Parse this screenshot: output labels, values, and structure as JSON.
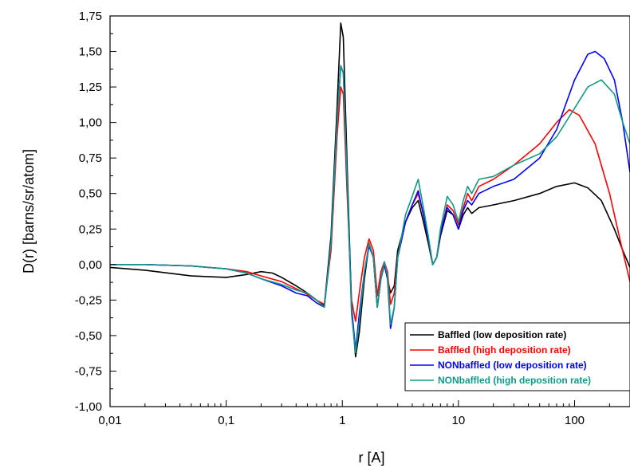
{
  "chart_data": {
    "type": "line",
    "xlabel": "r [A]",
    "ylabel": "D(r) [barns/sr/atom]",
    "xscale": "log",
    "xlim": [
      0.01,
      300
    ],
    "ylim": [
      -1.0,
      1.75
    ],
    "grid": false,
    "legend_position": "bottom-right",
    "x_ticks": [
      {
        "value": 0.01,
        "label": "0,01"
      },
      {
        "value": 0.1,
        "label": "0,1"
      },
      {
        "value": 1,
        "label": "1"
      },
      {
        "value": 10,
        "label": "10"
      },
      {
        "value": 100,
        "label": "100"
      }
    ],
    "y_ticks": [
      {
        "value": 1.75,
        "label": "1,75"
      },
      {
        "value": 1.5,
        "label": "1,50"
      },
      {
        "value": 1.25,
        "label": "1,25"
      },
      {
        "value": 1.0,
        "label": "1,00"
      },
      {
        "value": 0.75,
        "label": "0,75"
      },
      {
        "value": 0.5,
        "label": "0,50"
      },
      {
        "value": 0.25,
        "label": "0,25"
      },
      {
        "value": 0.0,
        "label": "0,00"
      },
      {
        "value": -0.25,
        "label": "-0,25"
      },
      {
        "value": -0.5,
        "label": "-0,50"
      },
      {
        "value": -0.75,
        "label": "-0,75"
      },
      {
        "value": -1.0,
        "label": "-1,00"
      }
    ],
    "series": [
      {
        "name": "Baffled (low deposition rate)",
        "color": "#000000",
        "points": [
          [
            0.01,
            -0.02
          ],
          [
            0.02,
            -0.04
          ],
          [
            0.05,
            -0.08
          ],
          [
            0.1,
            -0.09
          ],
          [
            0.15,
            -0.07
          ],
          [
            0.2,
            -0.05
          ],
          [
            0.25,
            -0.06
          ],
          [
            0.3,
            -0.09
          ],
          [
            0.4,
            -0.15
          ],
          [
            0.5,
            -0.2
          ],
          [
            0.6,
            -0.25
          ],
          [
            0.7,
            -0.29
          ],
          [
            0.8,
            0.2
          ],
          [
            0.9,
            1.1
          ],
          [
            0.97,
            1.7
          ],
          [
            1.02,
            1.6
          ],
          [
            1.1,
            0.7
          ],
          [
            1.2,
            -0.3
          ],
          [
            1.3,
            -0.65
          ],
          [
            1.4,
            -0.48
          ],
          [
            1.55,
            -0.1
          ],
          [
            1.7,
            0.15
          ],
          [
            1.85,
            0.05
          ],
          [
            2.0,
            -0.3
          ],
          [
            2.15,
            -0.1
          ],
          [
            2.3,
            0.0
          ],
          [
            2.45,
            -0.1
          ],
          [
            2.6,
            -0.2
          ],
          [
            2.8,
            -0.15
          ],
          [
            3.0,
            0.1
          ],
          [
            3.5,
            0.3
          ],
          [
            4.0,
            0.4
          ],
          [
            4.5,
            0.45
          ],
          [
            5.0,
            0.3
          ],
          [
            5.5,
            0.15
          ],
          [
            6.0,
            0.0
          ],
          [
            6.5,
            0.05
          ],
          [
            7.0,
            0.2
          ],
          [
            8.0,
            0.38
          ],
          [
            9.0,
            0.35
          ],
          [
            10.0,
            0.25
          ],
          [
            11.0,
            0.35
          ],
          [
            12.0,
            0.4
          ],
          [
            13.0,
            0.36
          ],
          [
            15.0,
            0.4
          ],
          [
            20.0,
            0.42
          ],
          [
            30.0,
            0.45
          ],
          [
            50.0,
            0.5
          ],
          [
            70.0,
            0.55
          ],
          [
            100.0,
            0.575
          ],
          [
            130.0,
            0.54
          ],
          [
            170.0,
            0.45
          ],
          [
            220.0,
            0.25
          ],
          [
            260.0,
            0.1
          ],
          [
            300.0,
            -0.02
          ]
        ]
      },
      {
        "name": "Baffled (high deposition rate)",
        "color": "#ff0000",
        "points": [
          [
            0.01,
            0.0
          ],
          [
            0.02,
            0.0
          ],
          [
            0.05,
            -0.01
          ],
          [
            0.1,
            -0.03
          ],
          [
            0.15,
            -0.05
          ],
          [
            0.2,
            -0.08
          ],
          [
            0.3,
            -0.12
          ],
          [
            0.4,
            -0.17
          ],
          [
            0.5,
            -0.21
          ],
          [
            0.6,
            -0.25
          ],
          [
            0.7,
            -0.28
          ],
          [
            0.8,
            0.1
          ],
          [
            0.9,
            0.9
          ],
          [
            0.97,
            1.25
          ],
          [
            1.02,
            1.2
          ],
          [
            1.1,
            0.5
          ],
          [
            1.2,
            -0.25
          ],
          [
            1.3,
            -0.4
          ],
          [
            1.4,
            -0.2
          ],
          [
            1.55,
            0.05
          ],
          [
            1.7,
            0.18
          ],
          [
            1.85,
            0.1
          ],
          [
            2.0,
            -0.22
          ],
          [
            2.15,
            -0.05
          ],
          [
            2.3,
            0.02
          ],
          [
            2.45,
            -0.05
          ],
          [
            2.6,
            -0.28
          ],
          [
            2.8,
            -0.2
          ],
          [
            3.0,
            0.05
          ],
          [
            3.5,
            0.3
          ],
          [
            4.0,
            0.42
          ],
          [
            4.5,
            0.5
          ],
          [
            5.0,
            0.35
          ],
          [
            5.5,
            0.18
          ],
          [
            6.0,
            0.0
          ],
          [
            6.5,
            0.05
          ],
          [
            7.0,
            0.22
          ],
          [
            8.0,
            0.42
          ],
          [
            9.0,
            0.38
          ],
          [
            10.0,
            0.28
          ],
          [
            11.0,
            0.4
          ],
          [
            12.0,
            0.5
          ],
          [
            13.0,
            0.45
          ],
          [
            15.0,
            0.55
          ],
          [
            20.0,
            0.6
          ],
          [
            30.0,
            0.7
          ],
          [
            50.0,
            0.85
          ],
          [
            70.0,
            1.0
          ],
          [
            90.0,
            1.09
          ],
          [
            110.0,
            1.05
          ],
          [
            150.0,
            0.85
          ],
          [
            200.0,
            0.5
          ],
          [
            250.0,
            0.15
          ],
          [
            300.0,
            -0.12
          ]
        ]
      },
      {
        "name": "NONbaffled (low deposition rate)",
        "color": "#0000ff",
        "points": [
          [
            0.01,
            0.0
          ],
          [
            0.02,
            0.0
          ],
          [
            0.05,
            -0.01
          ],
          [
            0.1,
            -0.03
          ],
          [
            0.15,
            -0.06
          ],
          [
            0.2,
            -0.1
          ],
          [
            0.3,
            -0.15
          ],
          [
            0.4,
            -0.2
          ],
          [
            0.5,
            -0.22
          ],
          [
            0.6,
            -0.27
          ],
          [
            0.7,
            -0.3
          ],
          [
            0.8,
            0.15
          ],
          [
            0.9,
            1.0
          ],
          [
            0.97,
            1.4
          ],
          [
            1.02,
            1.35
          ],
          [
            1.1,
            0.6
          ],
          [
            1.2,
            -0.3
          ],
          [
            1.3,
            -0.6
          ],
          [
            1.4,
            -0.35
          ],
          [
            1.55,
            -0.05
          ],
          [
            1.7,
            0.13
          ],
          [
            1.85,
            0.05
          ],
          [
            2.0,
            -0.3
          ],
          [
            2.15,
            -0.1
          ],
          [
            2.3,
            0.0
          ],
          [
            2.45,
            -0.1
          ],
          [
            2.6,
            -0.45
          ],
          [
            2.8,
            -0.3
          ],
          [
            3.0,
            0.05
          ],
          [
            3.5,
            0.3
          ],
          [
            4.0,
            0.42
          ],
          [
            4.5,
            0.52
          ],
          [
            5.0,
            0.35
          ],
          [
            5.5,
            0.18
          ],
          [
            6.0,
            0.0
          ],
          [
            6.5,
            0.05
          ],
          [
            7.0,
            0.22
          ],
          [
            8.0,
            0.4
          ],
          [
            9.0,
            0.35
          ],
          [
            10.0,
            0.25
          ],
          [
            11.0,
            0.38
          ],
          [
            12.0,
            0.45
          ],
          [
            13.0,
            0.42
          ],
          [
            15.0,
            0.5
          ],
          [
            20.0,
            0.55
          ],
          [
            30.0,
            0.6
          ],
          [
            50.0,
            0.75
          ],
          [
            70.0,
            0.95
          ],
          [
            100.0,
            1.3
          ],
          [
            130.0,
            1.48
          ],
          [
            150.0,
            1.5
          ],
          [
            180.0,
            1.45
          ],
          [
            220.0,
            1.3
          ],
          [
            260.0,
            1.0
          ],
          [
            300.0,
            0.65
          ]
        ]
      },
      {
        "name": "NONbaffled (high deposition rate)",
        "color": "#119988",
        "points": [
          [
            0.01,
            0.0
          ],
          [
            0.02,
            0.0
          ],
          [
            0.05,
            -0.01
          ],
          [
            0.1,
            -0.03
          ],
          [
            0.15,
            -0.06
          ],
          [
            0.2,
            -0.1
          ],
          [
            0.3,
            -0.14
          ],
          [
            0.4,
            -0.18
          ],
          [
            0.5,
            -0.2
          ],
          [
            0.6,
            -0.25
          ],
          [
            0.7,
            -0.3
          ],
          [
            0.8,
            0.15
          ],
          [
            0.9,
            1.0
          ],
          [
            0.97,
            1.4
          ],
          [
            1.02,
            1.35
          ],
          [
            1.1,
            0.6
          ],
          [
            1.2,
            -0.35
          ],
          [
            1.3,
            -0.62
          ],
          [
            1.4,
            -0.4
          ],
          [
            1.55,
            -0.05
          ],
          [
            1.7,
            0.15
          ],
          [
            1.85,
            0.05
          ],
          [
            2.0,
            -0.3
          ],
          [
            2.15,
            -0.1
          ],
          [
            2.3,
            0.02
          ],
          [
            2.45,
            -0.08
          ],
          [
            2.6,
            -0.42
          ],
          [
            2.8,
            -0.3
          ],
          [
            3.0,
            0.05
          ],
          [
            3.5,
            0.35
          ],
          [
            4.0,
            0.48
          ],
          [
            4.5,
            0.6
          ],
          [
            5.0,
            0.4
          ],
          [
            5.5,
            0.2
          ],
          [
            6.0,
            0.0
          ],
          [
            6.5,
            0.05
          ],
          [
            7.0,
            0.25
          ],
          [
            8.0,
            0.48
          ],
          [
            9.0,
            0.42
          ],
          [
            10.0,
            0.3
          ],
          [
            11.0,
            0.45
          ],
          [
            12.0,
            0.55
          ],
          [
            13.0,
            0.5
          ],
          [
            15.0,
            0.6
          ],
          [
            20.0,
            0.62
          ],
          [
            30.0,
            0.7
          ],
          [
            50.0,
            0.78
          ],
          [
            70.0,
            0.9
          ],
          [
            100.0,
            1.1
          ],
          [
            130.0,
            1.25
          ],
          [
            170.0,
            1.3
          ],
          [
            220.0,
            1.2
          ],
          [
            260.0,
            1.0
          ],
          [
            300.0,
            0.85
          ]
        ]
      }
    ]
  }
}
